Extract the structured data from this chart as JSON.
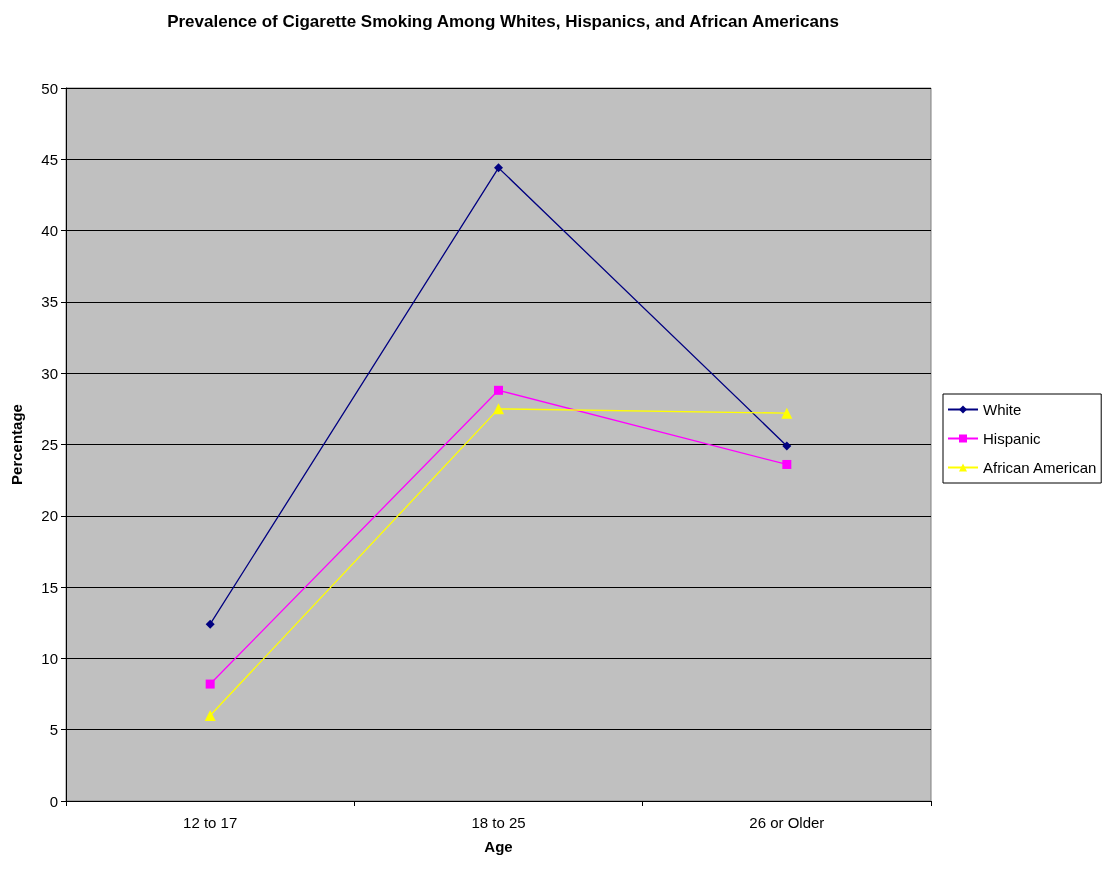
{
  "chart_data": {
    "type": "line",
    "title": "Prevalence of Cigarette Smoking Among Whites, Hispanics, and African Americans",
    "xlabel": "Age",
    "ylabel": "Percentage",
    "categories": [
      "12 to 17",
      "18 to 25",
      "26 or Older"
    ],
    "series": [
      {
        "name": "White",
        "color": "#000080",
        "marker": "diamond",
        "values": [
          12.4,
          44.4,
          24.9
        ]
      },
      {
        "name": "Hispanic",
        "color": "#ff00ff",
        "marker": "square",
        "values": [
          8.2,
          28.8,
          23.6
        ]
      },
      {
        "name": "African American",
        "color": "#ffff00",
        "marker": "triangle",
        "values": [
          6.0,
          27.5,
          27.2
        ]
      }
    ],
    "ylim": [
      0,
      50
    ],
    "yticks": [
      0,
      5,
      10,
      15,
      20,
      25,
      30,
      35,
      40,
      45,
      50
    ],
    "grid": "y",
    "legend": "right",
    "line_style": "solid"
  }
}
